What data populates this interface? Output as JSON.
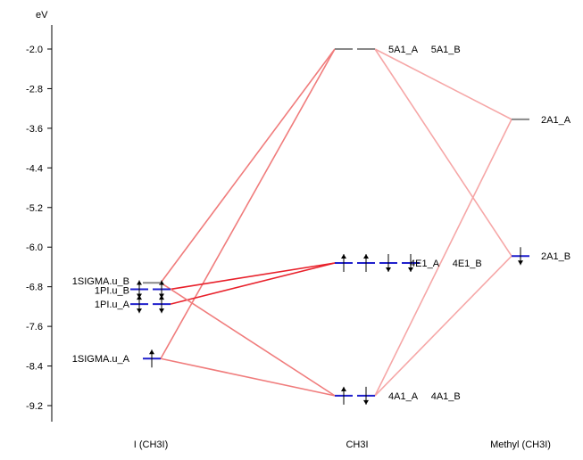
{
  "axis": {
    "unit": "eV",
    "ticks": [
      "-2.0",
      "-2.8",
      "-3.6",
      "-4.4",
      "-5.2",
      "-6.0",
      "-6.8",
      "-7.6",
      "-8.4",
      "-9.2"
    ]
  },
  "columns": [
    "I (CH3I)",
    "CH3I",
    "Methyl (CH3I)"
  ],
  "levels": [
    {
      "id": "I_1SIGMA_u_A",
      "column": 0,
      "energy": -8.25,
      "label": "1SIGMA.u_A",
      "electrons": [
        "up"
      ],
      "color": "#1f1fcc"
    },
    {
      "id": "I_1PI_u_A",
      "column": 0,
      "energy": -7.15,
      "label": "1PI.u_A",
      "electrons": [
        "up-down",
        "up-down"
      ],
      "color": "#1f1fcc"
    },
    {
      "id": "I_1PI_u_B",
      "column": 0,
      "energy": -6.85,
      "label": "1PI.u_B",
      "electrons": [
        "up-down",
        "up-down"
      ],
      "color": "#1f1fcc"
    },
    {
      "id": "I_1SIGMA_u_B",
      "column": 0,
      "energy": -6.72,
      "label": "1SIGMA.u_B",
      "electrons": [
        ""
      ],
      "color": "#888888"
    },
    {
      "id": "C_5A1",
      "column": 1,
      "energy": -2.0,
      "label": "5A1_A     5A1_B",
      "electrons": [
        "",
        ""
      ],
      "color": "#888888"
    },
    {
      "id": "C_4E1",
      "column": 1,
      "energy": -6.32,
      "label": "4E1_A     4E1_B",
      "electrons": [
        "up",
        "up",
        "down",
        "down"
      ],
      "color": "#1f1fcc"
    },
    {
      "id": "C_4A1",
      "column": 1,
      "energy": -9.0,
      "label": "4A1_A     4A1_B",
      "electrons": [
        "up",
        "down"
      ],
      "color": "#1f1fcc"
    },
    {
      "id": "M_2A1_A",
      "column": 2,
      "energy": -3.42,
      "label": "2A1_A",
      "electrons": [
        ""
      ],
      "color": "#888888"
    },
    {
      "id": "M_2A1_B",
      "column": 2,
      "energy": -6.18,
      "label": "2A1_B",
      "electrons": [
        "down"
      ],
      "color": "#1f1fcc"
    }
  ],
  "connections": [
    {
      "from": "I_1SIGMA_u_B",
      "to": "C_5A1",
      "color": "#f07c7c"
    },
    {
      "from": "I_1SIGMA_u_A",
      "to": "C_5A1",
      "color": "#f07c7c"
    },
    {
      "from": "I_1PI_u_B",
      "to": "C_4E1",
      "color": "#e8202a"
    },
    {
      "from": "I_1PI_u_A",
      "to": "C_4E1",
      "color": "#e8202a"
    },
    {
      "from": "I_1SIGMA_u_B",
      "to": "C_4A1",
      "color": "#f07c7c"
    },
    {
      "from": "I_1SIGMA_u_A",
      "to": "C_4A1",
      "color": "#f07c7c"
    },
    {
      "from": "C_5A1",
      "to": "M_2A1_A",
      "color": "#f6a7a7"
    },
    {
      "from": "C_5A1",
      "to": "M_2A1_B",
      "color": "#f6a7a7"
    },
    {
      "from": "C_4A1",
      "to": "M_2A1_A",
      "color": "#f6a7a7"
    },
    {
      "from": "C_4A1",
      "to": "M_2A1_B",
      "color": "#f6a7a7"
    }
  ]
}
